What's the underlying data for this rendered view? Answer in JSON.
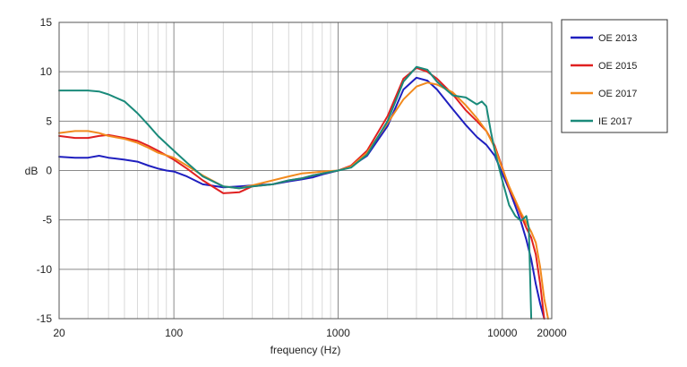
{
  "chart_data": {
    "type": "line",
    "xlabel": "frequency (Hz)",
    "ylabel": "dB",
    "xscale": "log",
    "xlim": [
      20,
      20000
    ],
    "ylim": [
      -15,
      15
    ],
    "x_ticks": [
      {
        "value": 20,
        "label": "20"
      },
      {
        "value": 100,
        "label": "100"
      },
      {
        "value": 1000,
        "label": "1000"
      },
      {
        "value": 10000,
        "label": "10000"
      },
      {
        "value": 20000,
        "label": "20000"
      }
    ],
    "y_ticks": [
      {
        "value": 15,
        "label": "15"
      },
      {
        "value": 10,
        "label": "10"
      },
      {
        "value": 5,
        "label": "5"
      },
      {
        "value": 0,
        "label": "0"
      },
      {
        "value": -5,
        "label": "-5"
      },
      {
        "value": -10,
        "label": "-10"
      },
      {
        "value": -15,
        "label": "-15"
      }
    ],
    "grid": true,
    "legend": "right",
    "series": [
      {
        "name": "OE 2013",
        "color": "#1f1fbf",
        "points": [
          [
            20,
            1.4
          ],
          [
            25,
            1.3
          ],
          [
            30,
            1.3
          ],
          [
            35,
            1.5
          ],
          [
            40,
            1.3
          ],
          [
            50,
            1.1
          ],
          [
            60,
            0.9
          ],
          [
            70,
            0.5
          ],
          [
            80,
            0.2
          ],
          [
            90,
            0
          ],
          [
            100,
            -0.1
          ],
          [
            120,
            -0.6
          ],
          [
            150,
            -1.4
          ],
          [
            200,
            -1.7
          ],
          [
            250,
            -1.6
          ],
          [
            300,
            -1.5
          ],
          [
            400,
            -1.4
          ],
          [
            500,
            -1.1
          ],
          [
            600,
            -0.9
          ],
          [
            700,
            -0.7
          ],
          [
            800,
            -0.4
          ],
          [
            1000,
            0
          ],
          [
            1200,
            0.4
          ],
          [
            1500,
            1.5
          ],
          [
            2000,
            4.5
          ],
          [
            2500,
            8.2
          ],
          [
            3000,
            9.4
          ],
          [
            3500,
            9.1
          ],
          [
            4000,
            8.2
          ],
          [
            5000,
            6.2
          ],
          [
            6000,
            4.6
          ],
          [
            7000,
            3.4
          ],
          [
            8000,
            2.6
          ],
          [
            9000,
            1.5
          ],
          [
            10000,
            -0.3
          ],
          [
            11000,
            -1.9
          ],
          [
            12000,
            -3.6
          ],
          [
            13000,
            -5.2
          ],
          [
            14000,
            -7
          ],
          [
            15000,
            -9
          ],
          [
            16000,
            -11.5
          ],
          [
            17000,
            -13.5
          ],
          [
            18000,
            -15
          ]
        ]
      },
      {
        "name": "OE 2015",
        "color": "#e02020",
        "points": [
          [
            20,
            3.5
          ],
          [
            25,
            3.3
          ],
          [
            30,
            3.3
          ],
          [
            35,
            3.5
          ],
          [
            40,
            3.6
          ],
          [
            50,
            3.3
          ],
          [
            60,
            3
          ],
          [
            70,
            2.5
          ],
          [
            80,
            2
          ],
          [
            100,
            1.1
          ],
          [
            120,
            0.2
          ],
          [
            150,
            -1
          ],
          [
            200,
            -2.3
          ],
          [
            250,
            -2.2
          ],
          [
            300,
            -1.6
          ],
          [
            400,
            -1.4
          ],
          [
            500,
            -1
          ],
          [
            600,
            -0.8
          ],
          [
            700,
            -0.5
          ],
          [
            800,
            -0.3
          ],
          [
            1000,
            0
          ],
          [
            1200,
            0.5
          ],
          [
            1500,
            2
          ],
          [
            2000,
            5.5
          ],
          [
            2500,
            9.3
          ],
          [
            3000,
            10.4
          ],
          [
            3500,
            10
          ],
          [
            4000,
            9.3
          ],
          [
            5000,
            7.7
          ],
          [
            6000,
            6.1
          ],
          [
            7000,
            5
          ],
          [
            8000,
            4
          ],
          [
            9000,
            2.5
          ],
          [
            10000,
            0.3
          ],
          [
            11000,
            -1.8
          ],
          [
            12000,
            -3.1
          ],
          [
            13000,
            -4.5
          ],
          [
            14000,
            -5.8
          ],
          [
            15000,
            -6.8
          ],
          [
            16000,
            -8.5
          ],
          [
            17000,
            -11.5
          ],
          [
            18000,
            -15
          ]
        ]
      },
      {
        "name": "OE 2017",
        "color": "#f28a1e",
        "points": [
          [
            20,
            3.8
          ],
          [
            25,
            4
          ],
          [
            30,
            4
          ],
          [
            35,
            3.8
          ],
          [
            40,
            3.5
          ],
          [
            50,
            3.2
          ],
          [
            60,
            2.8
          ],
          [
            70,
            2.3
          ],
          [
            80,
            1.8
          ],
          [
            100,
            1.3
          ],
          [
            120,
            0.5
          ],
          [
            150,
            -0.5
          ],
          [
            200,
            -1.6
          ],
          [
            250,
            -1.8
          ],
          [
            300,
            -1.5
          ],
          [
            400,
            -1
          ],
          [
            500,
            -0.6
          ],
          [
            600,
            -0.3
          ],
          [
            700,
            -0.2
          ],
          [
            800,
            -0.1
          ],
          [
            1000,
            0
          ],
          [
            1200,
            0.4
          ],
          [
            1500,
            1.8
          ],
          [
            2000,
            4.8
          ],
          [
            2500,
            7.2
          ],
          [
            3000,
            8.5
          ],
          [
            3500,
            8.9
          ],
          [
            4000,
            8.7
          ],
          [
            5000,
            7.9
          ],
          [
            6000,
            6.6
          ],
          [
            7000,
            5.3
          ],
          [
            8000,
            4
          ],
          [
            9000,
            2.3
          ],
          [
            10000,
            0.2
          ],
          [
            11000,
            -1.6
          ],
          [
            12000,
            -3
          ],
          [
            13000,
            -4.3
          ],
          [
            14000,
            -5.3
          ],
          [
            15000,
            -6.2
          ],
          [
            16000,
            -7.3
          ],
          [
            17000,
            -9.8
          ],
          [
            18000,
            -13
          ],
          [
            19000,
            -15
          ]
        ]
      },
      {
        "name": "IE 2017",
        "color": "#1a8a7a",
        "points": [
          [
            20,
            8.1
          ],
          [
            25,
            8.1
          ],
          [
            30,
            8.1
          ],
          [
            35,
            8
          ],
          [
            40,
            7.7
          ],
          [
            50,
            7
          ],
          [
            60,
            5.8
          ],
          [
            70,
            4.6
          ],
          [
            80,
            3.5
          ],
          [
            100,
            2
          ],
          [
            120,
            0.8
          ],
          [
            150,
            -0.6
          ],
          [
            200,
            -1.6
          ],
          [
            250,
            -1.8
          ],
          [
            300,
            -1.6
          ],
          [
            400,
            -1.4
          ],
          [
            500,
            -1
          ],
          [
            600,
            -0.8
          ],
          [
            700,
            -0.5
          ],
          [
            800,
            -0.3
          ],
          [
            1000,
            0
          ],
          [
            1200,
            0.3
          ],
          [
            1500,
            1.6
          ],
          [
            2000,
            5
          ],
          [
            2500,
            9
          ],
          [
            3000,
            10.5
          ],
          [
            3500,
            10.2
          ],
          [
            4000,
            9
          ],
          [
            5000,
            7.6
          ],
          [
            6000,
            7.4
          ],
          [
            7000,
            6.7
          ],
          [
            7500,
            7
          ],
          [
            8000,
            6.5
          ],
          [
            8500,
            4
          ],
          [
            9000,
            2
          ],
          [
            10000,
            -1
          ],
          [
            11000,
            -3.5
          ],
          [
            12000,
            -4.6
          ],
          [
            13000,
            -5.1
          ],
          [
            14000,
            -4.6
          ],
          [
            14500,
            -5.8
          ],
          [
            15000,
            -15
          ]
        ]
      }
    ]
  }
}
